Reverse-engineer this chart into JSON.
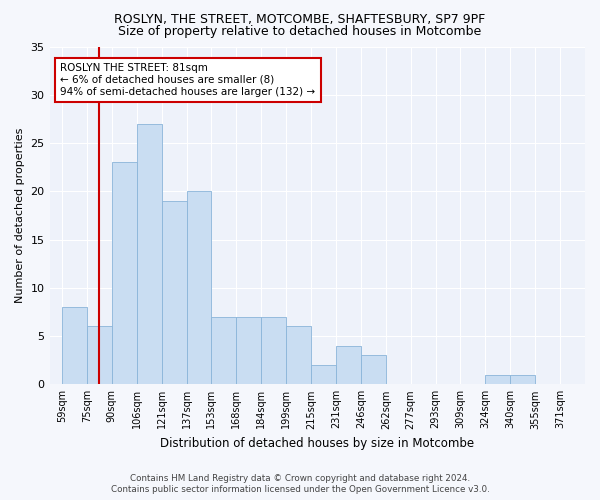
{
  "title": "ROSLYN, THE STREET, MOTCOMBE, SHAFTESBURY, SP7 9PF",
  "subtitle": "Size of property relative to detached houses in Motcombe",
  "xlabel": "Distribution of detached houses by size in Motcombe",
  "ylabel": "Number of detached properties",
  "bar_labels": [
    "59sqm",
    "75sqm",
    "90sqm",
    "106sqm",
    "121sqm",
    "137sqm",
    "153sqm",
    "168sqm",
    "184sqm",
    "199sqm",
    "215sqm",
    "231sqm",
    "246sqm",
    "262sqm",
    "277sqm",
    "293sqm",
    "309sqm",
    "324sqm",
    "340sqm",
    "355sqm",
    "371sqm"
  ],
  "bar_values": [
    8,
    6,
    23,
    27,
    19,
    20,
    7,
    7,
    7,
    6,
    2,
    4,
    3,
    0,
    0,
    0,
    0,
    1,
    1,
    0,
    0
  ],
  "bar_color": "#c9ddf2",
  "bar_edge_color": "#8ab4d9",
  "annotation_title": "ROSLYN THE STREET: 81sqm",
  "annotation_line1": "← 6% of detached houses are smaller (8)",
  "annotation_line2": "94% of semi-detached houses are larger (132) →",
  "annotation_box_color": "#ffffff",
  "annotation_border_color": "#cc0000",
  "red_line_x": 1.5,
  "ylim": [
    0,
    35
  ],
  "yticks": [
    0,
    5,
    10,
    15,
    20,
    25,
    30,
    35
  ],
  "background_color": "#eef2fa",
  "grid_color": "#ffffff",
  "footer_line1": "Contains HM Land Registry data © Crown copyright and database right 2024.",
  "footer_line2": "Contains public sector information licensed under the Open Government Licence v3.0."
}
